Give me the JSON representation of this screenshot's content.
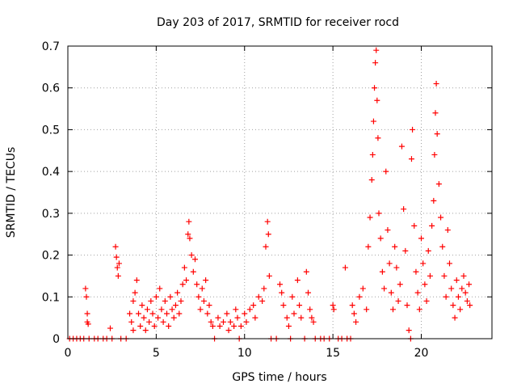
{
  "chart_data": {
    "type": "scatter",
    "title": "Day 203 of 2017, SRMTID for receiver rocd",
    "xlabel": "GPS time / hours",
    "ylabel": "SRMTID / TECUs",
    "xlim": [
      0,
      24
    ],
    "ylim": [
      0,
      0.7
    ],
    "xticks": [
      0,
      5,
      10,
      15,
      20
    ],
    "xtick_labels": [
      "0",
      "5",
      "10",
      "15",
      "20"
    ],
    "yticks": [
      0,
      0.1,
      0.2,
      0.3,
      0.4,
      0.5,
      0.6,
      0.7
    ],
    "ytick_labels": [
      "0",
      "0.1",
      "0.2",
      "0.3",
      "0.4",
      "0.5",
      "0.6",
      "0.7"
    ],
    "grid": true,
    "marker": "+",
    "color": "#ff0000",
    "series": [
      {
        "name": "SRMTID",
        "points": [
          [
            0.1,
            0
          ],
          [
            0.3,
            0
          ],
          [
            0.5,
            0
          ],
          [
            0.7,
            0
          ],
          [
            0.9,
            0
          ],
          [
            1.0,
            0.12
          ],
          [
            1.05,
            0.1
          ],
          [
            1.1,
            0.06
          ],
          [
            1.1,
            0.04
          ],
          [
            1.15,
            0.035
          ],
          [
            1.2,
            0
          ],
          [
            1.5,
            0
          ],
          [
            1.7,
            0
          ],
          [
            2.0,
            0
          ],
          [
            2.2,
            0
          ],
          [
            2.5,
            0
          ],
          [
            2.4,
            0.025
          ],
          [
            2.7,
            0.22
          ],
          [
            2.75,
            0.195
          ],
          [
            2.8,
            0.17
          ],
          [
            2.85,
            0.15
          ],
          [
            2.9,
            0.18
          ],
          [
            3.0,
            0
          ],
          [
            3.3,
            0
          ],
          [
            3.5,
            0.06
          ],
          [
            3.6,
            0.04
          ],
          [
            3.7,
            0.02
          ],
          [
            3.7,
            0.09
          ],
          [
            3.8,
            0.11
          ],
          [
            3.9,
            0.14
          ],
          [
            4.0,
            0.06
          ],
          [
            4.1,
            0.03
          ],
          [
            4.2,
            0.08
          ],
          [
            4.3,
            0.05
          ],
          [
            4.4,
            0.02
          ],
          [
            4.5,
            0.07
          ],
          [
            4.6,
            0.04
          ],
          [
            4.7,
            0.09
          ],
          [
            4.8,
            0.06
          ],
          [
            4.9,
            0.03
          ],
          [
            5.0,
            0.1
          ],
          [
            5.1,
            0.05
          ],
          [
            5.2,
            0.12
          ],
          [
            5.3,
            0.07
          ],
          [
            5.4,
            0.04
          ],
          [
            5.5,
            0.09
          ],
          [
            5.6,
            0.06
          ],
          [
            5.7,
            0.03
          ],
          [
            5.8,
            0.1
          ],
          [
            5.9,
            0.07
          ],
          [
            6.0,
            0.05
          ],
          [
            6.1,
            0.08
          ],
          [
            6.2,
            0.11
          ],
          [
            6.3,
            0.06
          ],
          [
            6.4,
            0.09
          ],
          [
            6.5,
            0.13
          ],
          [
            6.6,
            0.17
          ],
          [
            6.7,
            0.14
          ],
          [
            6.8,
            0.25
          ],
          [
            6.85,
            0.28
          ],
          [
            6.9,
            0.24
          ],
          [
            7.0,
            0.2
          ],
          [
            7.1,
            0.16
          ],
          [
            7.2,
            0.19
          ],
          [
            7.3,
            0.13
          ],
          [
            7.4,
            0.1
          ],
          [
            7.5,
            0.07
          ],
          [
            7.6,
            0.12
          ],
          [
            7.7,
            0.09
          ],
          [
            7.8,
            0.14
          ],
          [
            7.9,
            0.06
          ],
          [
            8.0,
            0.08
          ],
          [
            8.1,
            0.04
          ],
          [
            8.2,
            0.03
          ],
          [
            8.3,
            0
          ],
          [
            8.5,
            0.05
          ],
          [
            8.6,
            0.03
          ],
          [
            8.8,
            0.04
          ],
          [
            9.0,
            0.06
          ],
          [
            9.1,
            0.02
          ],
          [
            9.2,
            0.04
          ],
          [
            9.4,
            0.03
          ],
          [
            9.5,
            0.07
          ],
          [
            9.6,
            0.05
          ],
          [
            9.7,
            0
          ],
          [
            9.8,
            0.03
          ],
          [
            10.0,
            0.06
          ],
          [
            10.1,
            0.04
          ],
          [
            10.3,
            0.07
          ],
          [
            10.5,
            0.08
          ],
          [
            10.6,
            0.05
          ],
          [
            10.8,
            0.1
          ],
          [
            11.0,
            0.09
          ],
          [
            11.1,
            0.12
          ],
          [
            11.2,
            0.22
          ],
          [
            11.3,
            0.28
          ],
          [
            11.35,
            0.25
          ],
          [
            11.4,
            0.15
          ],
          [
            11.5,
            0
          ],
          [
            11.8,
            0
          ],
          [
            12.0,
            0.13
          ],
          [
            12.1,
            0.11
          ],
          [
            12.2,
            0.08
          ],
          [
            12.4,
            0.05
          ],
          [
            12.5,
            0.03
          ],
          [
            12.6,
            0
          ],
          [
            12.7,
            0.1
          ],
          [
            12.8,
            0.06
          ],
          [
            13.0,
            0.14
          ],
          [
            13.1,
            0.08
          ],
          [
            13.2,
            0.05
          ],
          [
            13.4,
            0
          ],
          [
            13.5,
            0.16
          ],
          [
            13.6,
            0.11
          ],
          [
            13.7,
            0.07
          ],
          [
            13.8,
            0.05
          ],
          [
            13.9,
            0.04
          ],
          [
            14.0,
            0
          ],
          [
            14.3,
            0
          ],
          [
            14.5,
            0
          ],
          [
            14.8,
            0
          ],
          [
            15.0,
            0.08
          ],
          [
            15.05,
            0.07
          ],
          [
            15.3,
            0
          ],
          [
            15.5,
            0
          ],
          [
            15.7,
            0.17
          ],
          [
            15.8,
            0
          ],
          [
            16.0,
            0
          ],
          [
            16.1,
            0.08
          ],
          [
            16.2,
            0.06
          ],
          [
            16.3,
            0.04
          ],
          [
            16.5,
            0.1
          ],
          [
            16.7,
            0.12
          ],
          [
            16.9,
            0.07
          ],
          [
            17.0,
            0.22
          ],
          [
            17.1,
            0.29
          ],
          [
            17.2,
            0.38
          ],
          [
            17.25,
            0.44
          ],
          [
            17.3,
            0.52
          ],
          [
            17.35,
            0.6
          ],
          [
            17.4,
            0.66
          ],
          [
            17.45,
            0.69
          ],
          [
            17.5,
            0.57
          ],
          [
            17.55,
            0.48
          ],
          [
            17.6,
            0.3
          ],
          [
            17.7,
            0.24
          ],
          [
            17.8,
            0.16
          ],
          [
            17.9,
            0.12
          ],
          [
            18.0,
            0.4
          ],
          [
            18.1,
            0.26
          ],
          [
            18.2,
            0.18
          ],
          [
            18.3,
            0.11
          ],
          [
            18.4,
            0.07
          ],
          [
            18.5,
            0.22
          ],
          [
            18.6,
            0.17
          ],
          [
            18.7,
            0.09
          ],
          [
            18.8,
            0.13
          ],
          [
            18.9,
            0.46
          ],
          [
            19.0,
            0.31
          ],
          [
            19.1,
            0.21
          ],
          [
            19.2,
            0.08
          ],
          [
            19.3,
            0.02
          ],
          [
            19.4,
            0
          ],
          [
            19.45,
            0.43
          ],
          [
            19.5,
            0.5
          ],
          [
            19.6,
            0.27
          ],
          [
            19.7,
            0.16
          ],
          [
            19.8,
            0.11
          ],
          [
            19.9,
            0.07
          ],
          [
            20.0,
            0.24
          ],
          [
            20.1,
            0.18
          ],
          [
            20.2,
            0.13
          ],
          [
            20.3,
            0.09
          ],
          [
            20.4,
            0.21
          ],
          [
            20.5,
            0.15
          ],
          [
            20.6,
            0.27
          ],
          [
            20.7,
            0.33
          ],
          [
            20.75,
            0.44
          ],
          [
            20.8,
            0.54
          ],
          [
            20.85,
            0.61
          ],
          [
            20.9,
            0.49
          ],
          [
            21.0,
            0.37
          ],
          [
            21.1,
            0.29
          ],
          [
            21.2,
            0.22
          ],
          [
            21.3,
            0.15
          ],
          [
            21.4,
            0.1
          ],
          [
            21.5,
            0.26
          ],
          [
            21.6,
            0.18
          ],
          [
            21.7,
            0.12
          ],
          [
            21.8,
            0.08
          ],
          [
            21.9,
            0.05
          ],
          [
            22.0,
            0.14
          ],
          [
            22.1,
            0.1
          ],
          [
            22.2,
            0.07
          ],
          [
            22.3,
            0.12
          ],
          [
            22.4,
            0.15
          ],
          [
            22.5,
            0.11
          ],
          [
            22.6,
            0.09
          ],
          [
            22.7,
            0.13
          ],
          [
            22.75,
            0.08
          ]
        ]
      }
    ]
  }
}
